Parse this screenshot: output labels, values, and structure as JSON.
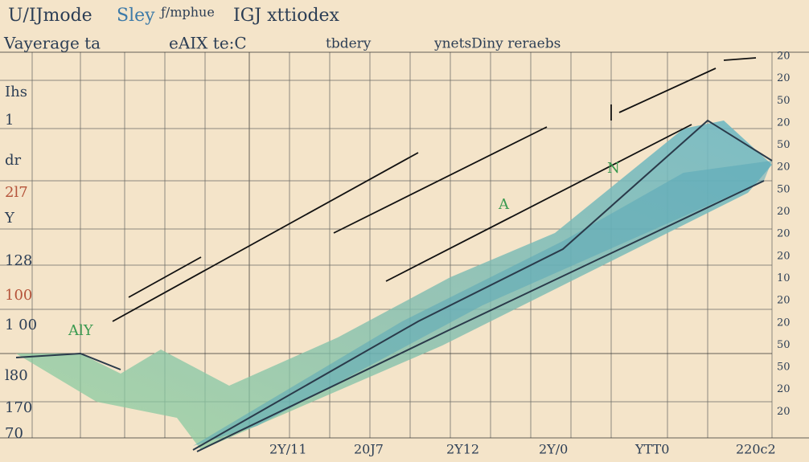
{
  "header": {
    "title": [
      "U/IJmode",
      "Sley",
      "ƒ/mphue",
      "IGJ xttiodex"
    ],
    "subtitle": [
      "Vayerage ta",
      "eAIX te:C",
      "tbdery",
      "ynetsDiny reraebs"
    ]
  },
  "left_labels": [
    "Ihs",
    "1",
    "dr",
    "2l7",
    "Y",
    "128",
    "100",
    "1 00",
    "l80",
    "170",
    "70"
  ],
  "bottom_labels": [
    "2Y/11",
    "20J7",
    "2Y12",
    "2Y/0",
    "YTT0",
    "220c2"
  ],
  "right_labels": [
    "20",
    "20",
    "50",
    "20",
    "50",
    "20",
    "50",
    "20",
    "20",
    "20",
    "10",
    "20",
    "20",
    "50",
    "50",
    "20",
    "20"
  ],
  "annotations": [
    "AlY",
    "A",
    "N"
  ]
}
